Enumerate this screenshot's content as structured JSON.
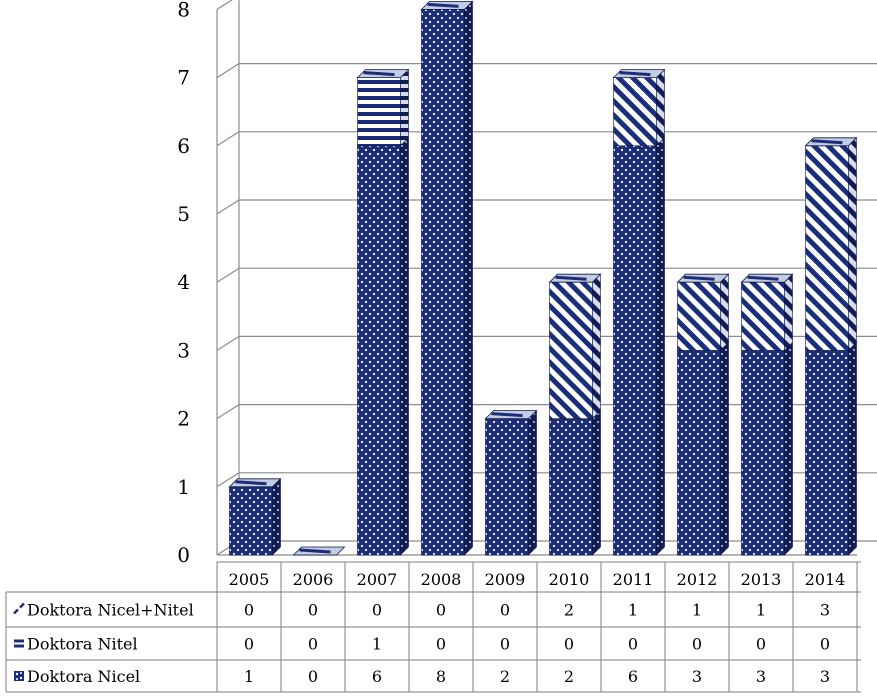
{
  "chart_data": {
    "type": "bar",
    "stacked": true,
    "style": "3d-column",
    "categories": [
      "2005",
      "2006",
      "2007",
      "2008",
      "2009",
      "2010",
      "2011",
      "2012",
      "2013",
      "2014"
    ],
    "series": [
      {
        "name": "Doktora Nicel",
        "values": [
          1,
          0,
          6,
          8,
          2,
          2,
          6,
          3,
          3,
          3
        ],
        "pattern": "dots"
      },
      {
        "name": "Doktora Nitel",
        "values": [
          0,
          0,
          1,
          0,
          0,
          0,
          0,
          0,
          0,
          0
        ],
        "pattern": "horizontal-stripes"
      },
      {
        "name": "Doktora Nicel+Nitel",
        "values": [
          0,
          0,
          0,
          0,
          0,
          2,
          1,
          1,
          1,
          3
        ],
        "pattern": "diagonal-stripes"
      }
    ],
    "y_ticks": [
      "0",
      "1",
      "2",
      "3",
      "4",
      "5",
      "6",
      "7",
      "8"
    ],
    "ylim": [
      0,
      8
    ],
    "grid": true,
    "legend": "data-table",
    "colors": {
      "bar": "#1b2e7a",
      "bar_side": "#101c55",
      "bar_top": "#c5cbe0",
      "grid": "#8c8c8c"
    }
  }
}
